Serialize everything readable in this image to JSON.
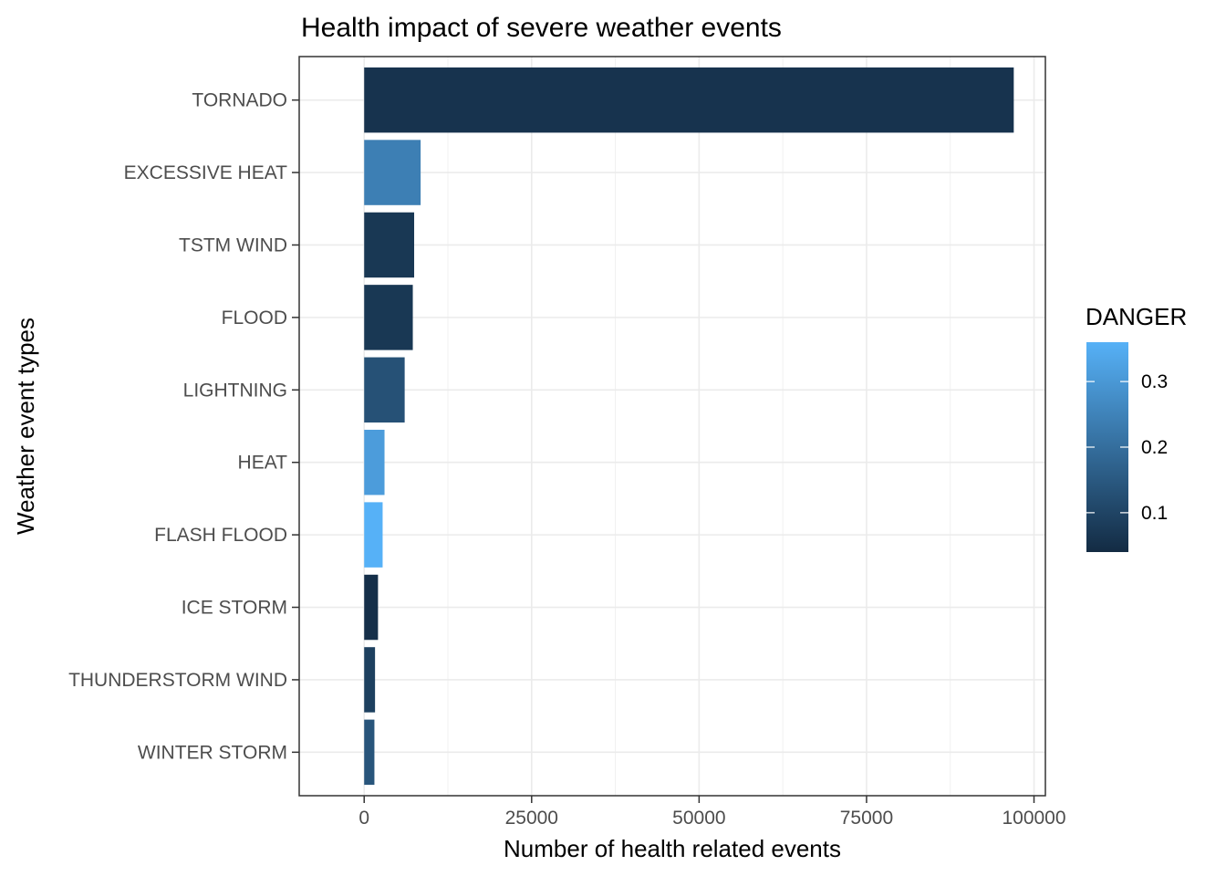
{
  "chart_data": {
    "type": "bar",
    "orientation": "horizontal",
    "title": "Health impact of severe weather events",
    "xlabel": "Number of health related events",
    "ylabel": "Weather event types",
    "xlim": [
      -9700,
      101700
    ],
    "x_ticks": [
      0,
      25000,
      50000,
      75000,
      100000
    ],
    "x_tick_labels": [
      "0",
      "25000",
      "50000",
      "75000",
      "100000"
    ],
    "grid": true,
    "theme": "bw",
    "categories": [
      "TORNADO",
      "EXCESSIVE HEAT",
      "TSTM WIND",
      "FLOOD",
      "LIGHTNING",
      "HEAT",
      "FLASH FLOOD",
      "ICE STORM",
      "THUNDERSTORM WIND",
      "WINTER STORM"
    ],
    "values": [
      96979,
      8428,
      7461,
      7259,
      6046,
      3037,
      2755,
      2064,
      1621,
      1527
    ],
    "danger": [
      0.06,
      0.24,
      0.07,
      0.07,
      0.13,
      0.31,
      0.36,
      0.05,
      0.09,
      0.14
    ],
    "legend": {
      "title": "DANGER",
      "placement": "right",
      "type": "colorbar",
      "range": [
        0.04,
        0.36
      ],
      "ticks": [
        0.1,
        0.2,
        0.3
      ],
      "tick_labels": [
        "0.1",
        "0.2",
        "0.3"
      ],
      "color_low": "#132B43",
      "color_high": "#56B1F7"
    }
  }
}
